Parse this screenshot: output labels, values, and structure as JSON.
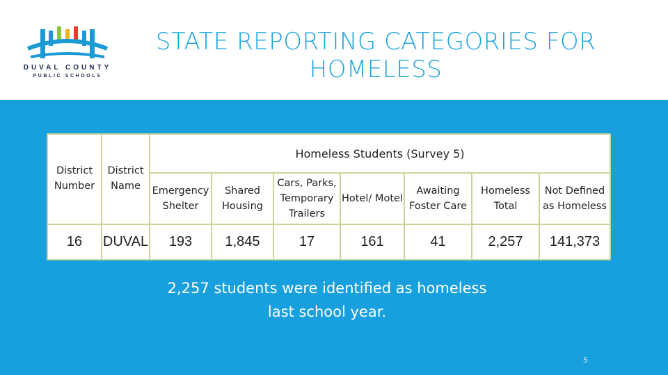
{
  "slide": {
    "title_line1": "STATE REPORTING CATEGORIES FOR",
    "title_line2": "HOMELESS",
    "caption_line1": "2,257 students were identified as homeless",
    "caption_line2": "last school year.",
    "page_number": "5"
  },
  "logo": {
    "line1": "DUVAL COUNTY",
    "line2": "PUBLIC SCHOOLS",
    "bar_colors": [
      "#1b9ad6",
      "#8cc63f",
      "#f0b323",
      "#e63b2e",
      "#1b9ad6"
    ],
    "arch_color": "#1b9ad6"
  },
  "table": {
    "group_header": "Homeless Students (Survey 5)",
    "headers": {
      "district_number": [
        "District",
        "Number"
      ],
      "district_name": [
        "District",
        "Name"
      ],
      "emergency_shelter": [
        "Emergency",
        "Shelter"
      ],
      "shared_housing": [
        "Shared",
        "Housing"
      ],
      "cars_parks": [
        "Cars, Parks,",
        "Temporary",
        "Trailers"
      ],
      "hotel_motel": [
        "Hotel/ Motel"
      ],
      "awaiting_foster": [
        "Awaiting",
        "Foster Care"
      ],
      "homeless_total": [
        "Homeless",
        "Total"
      ],
      "not_defined": [
        "Not Defined",
        "as Homeless"
      ]
    },
    "row": {
      "district_number": "16",
      "district_name": "DUVAL",
      "emergency_shelter": "193",
      "shared_housing": "1,845",
      "cars_parks": "17",
      "hotel_motel": "161",
      "awaiting_foster": "41",
      "homeless_total": "2,257",
      "not_defined": "141,373"
    }
  },
  "colors": {
    "band": "#17a0dd",
    "title": "#1aa3dd",
    "table_border": "#c9d59b"
  }
}
